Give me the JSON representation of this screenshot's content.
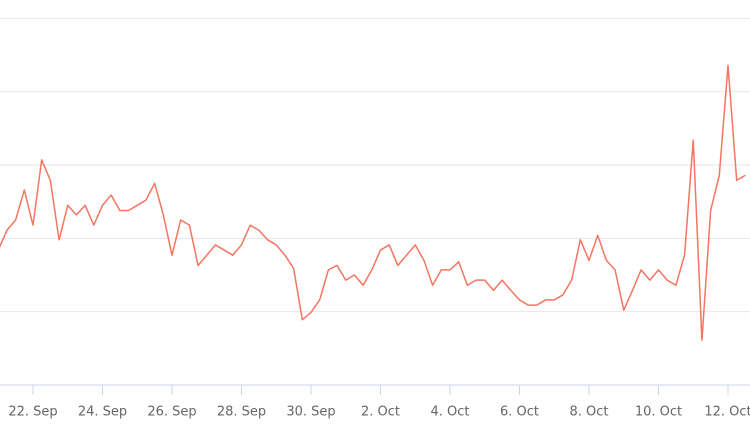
{
  "chart_data": {
    "type": "line",
    "categories": [
      null,
      null,
      null,
      null,
      "22. Sep",
      null,
      null,
      null,
      null,
      null,
      null,
      null,
      "24. Sep",
      null,
      null,
      null,
      null,
      null,
      null,
      null,
      "26. Sep",
      null,
      null,
      null,
      null,
      null,
      null,
      null,
      "28. Sep",
      null,
      null,
      null,
      null,
      null,
      null,
      null,
      "30. Sep",
      null,
      null,
      null,
      null,
      null,
      null,
      null,
      "2. Oct",
      null,
      null,
      null,
      null,
      null,
      null,
      null,
      "4. Oct",
      null,
      null,
      null,
      null,
      null,
      null,
      null,
      "6. Oct",
      null,
      null,
      null,
      null,
      null,
      null,
      null,
      "8. Oct",
      null,
      null,
      null,
      null,
      null,
      null,
      null,
      "10. Oct",
      null,
      null,
      null,
      null,
      null,
      null,
      null,
      "12. Oct",
      null,
      null
    ],
    "values": [
      1.84,
      2.11,
      2.25,
      2.66,
      2.18,
      3.07,
      2.79,
      1.98,
      2.45,
      2.32,
      2.45,
      2.18,
      2.45,
      2.59,
      2.38,
      2.38,
      2.45,
      2.52,
      2.75,
      2.32,
      1.77,
      2.25,
      2.18,
      1.63,
      1.77,
      1.91,
      1.84,
      1.77,
      1.91,
      2.18,
      2.11,
      1.98,
      1.91,
      1.77,
      1.59,
      0.89,
      0.99,
      1.16,
      1.57,
      1.63,
      1.43,
      1.5,
      1.36,
      1.57,
      1.84,
      1.91,
      1.63,
      1.77,
      1.91,
      1.7,
      1.36,
      1.57,
      1.57,
      1.68,
      1.36,
      1.43,
      1.43,
      1.29,
      1.43,
      1.29,
      1.16,
      1.09,
      1.09,
      1.16,
      1.16,
      1.23,
      1.43,
      1.98,
      1.7,
      2.04,
      1.7,
      1.57,
      1.02,
      1.29,
      1.57,
      1.43,
      1.57,
      1.43,
      1.36,
      1.77,
      3.34,
      0.61,
      2.38,
      2.86,
      4.36,
      2.79,
      2.86
    ],
    "color": "#f47560",
    "ylim": [
      0,
      5.25
    ],
    "yticks": [
      1,
      2,
      3,
      4,
      5
    ],
    "grid": true
  }
}
